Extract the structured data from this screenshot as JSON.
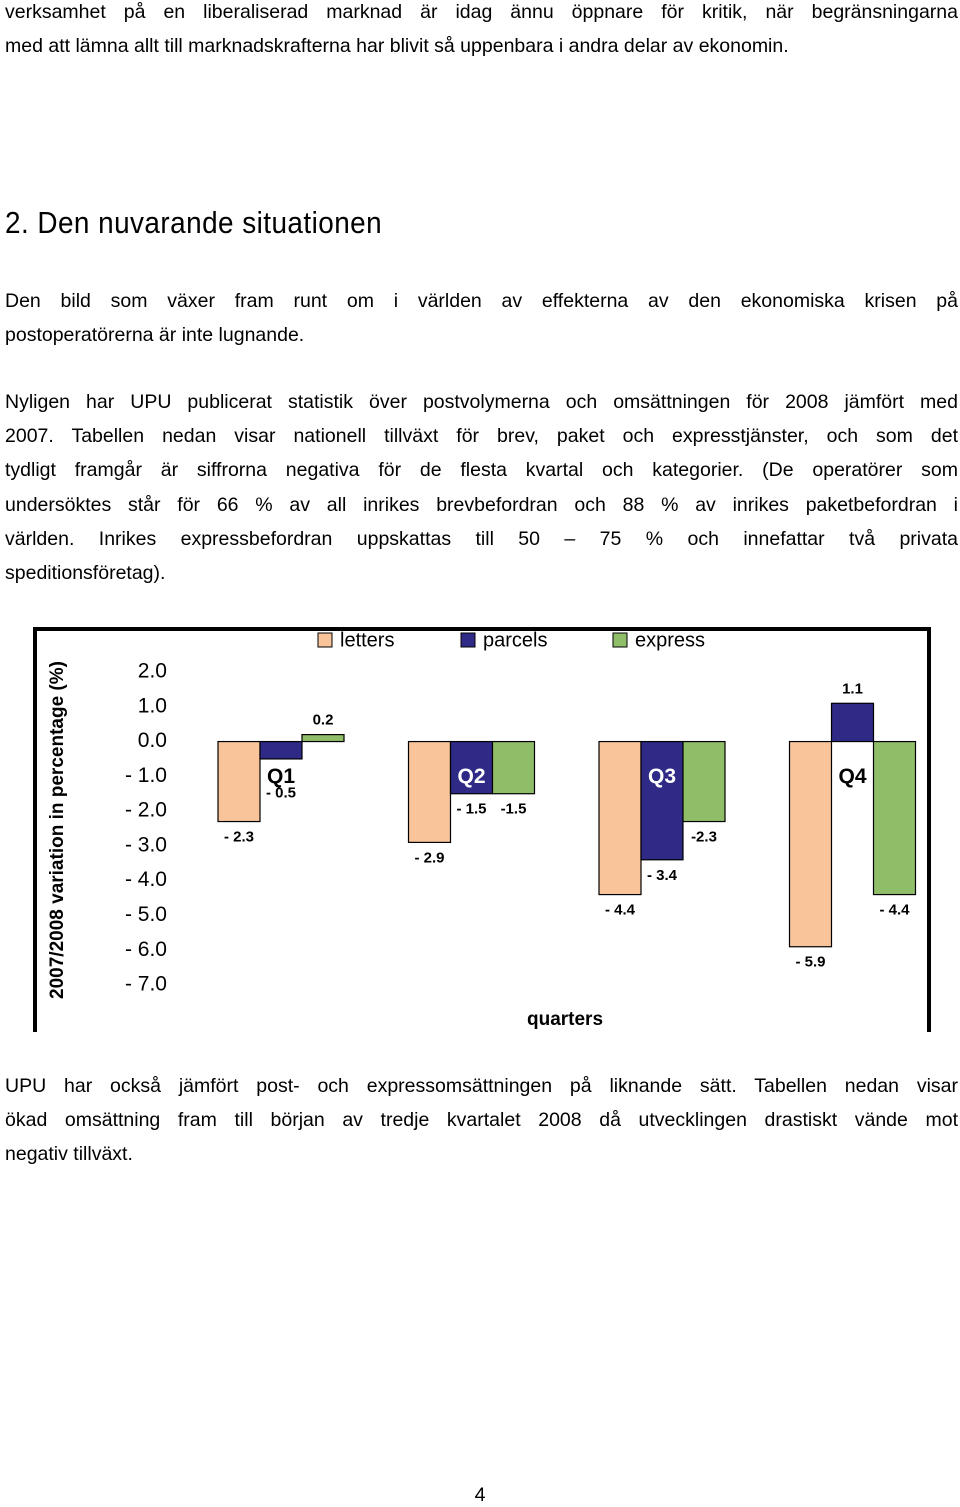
{
  "paragraphs": [
    {
      "lines": [
        "verksamhet på en liberaliserad marknad är idag ännu öppnare för kritik, när begränsningarna",
        "med att lämna allt till marknadskrafterna har blivit så uppenbara i andra delar av ekonomin."
      ]
    },
    {
      "lines": [
        "Den bild som växer fram runt om i världen av effekterna av den ekonomiska krisen på",
        "postoperatörerna är inte lugnande."
      ]
    },
    {
      "lines": [
        "Nyligen har UPU publicerat statistik över postvolymerna och omsättningen för 2008 jämfört med",
        "2007. Tabellen nedan visar nationell tillväxt för brev, paket och expresstjänster, och som det",
        "tydligt framgår är siffrorna negativa för de flesta kvartal och kategorier. (De operatörer som",
        "undersöktes står för 66 % av all inrikes brevbefordran och 88 % av inrikes paketbefordran i",
        "världen. Inrikes expressbefordran uppskattas till 50 – 75 % och innefattar två privata",
        "speditionsföretag)."
      ]
    },
    {
      "lines": [
        "UPU har också jämfört post- och expressomsättningen på liknande sätt. Tabellen nedan visar",
        "ökad omsättning fram till början av tredje kvartalet 2008 då utvecklingen drastiskt vände mot",
        "negativ tillväxt."
      ]
    }
  ],
  "heading": "2. Den nuvarande situationen",
  "chart_data": {
    "type": "bar",
    "y_label": "2007/2008 variation in percentage (%)",
    "x_label": "quarters",
    "categories": [
      "Q1",
      "Q2",
      "Q3",
      "Q4"
    ],
    "series": [
      {
        "name": "letters",
        "color": "#f9c49a",
        "values": [
          -2.3,
          -2.9,
          -4.4,
          -5.9
        ],
        "value_labels": [
          "- 2.3",
          "- 2.9",
          "- 4.4",
          "- 5.9"
        ]
      },
      {
        "name": "parcels",
        "color": "#2e2a86",
        "values": [
          -0.5,
          -1.5,
          -3.4,
          1.1
        ],
        "value_labels": [
          "- 0.5",
          "- 1.5",
          "- 3.4",
          "1.1"
        ]
      },
      {
        "name": "express",
        "color": "#8fbd68",
        "values": [
          0.2,
          -1.5,
          -2.3,
          -4.4
        ],
        "value_labels": [
          "0.2",
          "-1.5",
          "-2.3",
          "- 4.4"
        ]
      }
    ],
    "ylim": [
      -7,
      2
    ],
    "yticks": [
      {
        "value": 2,
        "label": "2.0"
      },
      {
        "value": 1,
        "label": "1.0"
      },
      {
        "value": 0,
        "label": "0.0"
      },
      {
        "value": -1,
        "label": "- 1.0"
      },
      {
        "value": -2,
        "label": "- 2.0"
      },
      {
        "value": -3,
        "label": "- 3.0"
      },
      {
        "value": -4,
        "label": "- 4.0"
      },
      {
        "value": -5,
        "label": "- 5.0"
      },
      {
        "value": -6,
        "label": "- 6.0"
      },
      {
        "value": -7,
        "label": "- 7.0"
      }
    ],
    "legend": "top"
  },
  "page_number": "4"
}
